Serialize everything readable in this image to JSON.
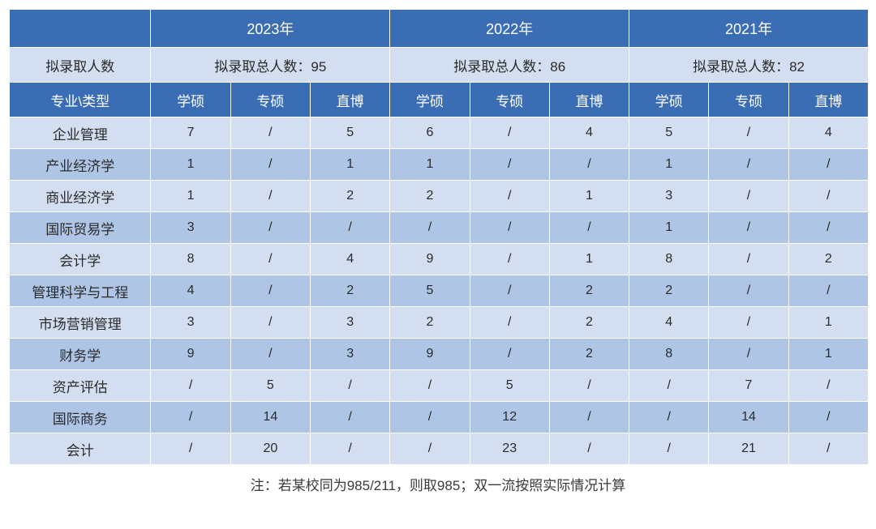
{
  "colors": {
    "header_bg": "#3b6db4",
    "header_fg": "#ffffff",
    "row_odd_bg": "#d3def0",
    "row_even_bg": "#aec5e5",
    "row_fg": "#2a2a2a",
    "border": "#ffffff"
  },
  "years": {
    "y2023": "2023年",
    "y2022": "2022年",
    "y2021": "2021年"
  },
  "totals": {
    "label": "拟录取人数",
    "t2023": "拟录取总人数：95",
    "t2022": "拟录取总人数：86",
    "t2021": "拟录取总人数：82"
  },
  "colheads": {
    "major": "专业\\类型",
    "xs": "学硕",
    "zs": "专硕",
    "zb": "直博"
  },
  "rows": {
    "r0": {
      "major": "企业管理",
      "a": "7",
      "b": "/",
      "c": "5",
      "d": "6",
      "e": "/",
      "f": "4",
      "g": "5",
      "h": "/",
      "i": "4"
    },
    "r1": {
      "major": "产业经济学",
      "a": "1",
      "b": "/",
      "c": "1",
      "d": "1",
      "e": "/",
      "f": "/",
      "g": "1",
      "h": "/",
      "i": "/"
    },
    "r2": {
      "major": "商业经济学",
      "a": "1",
      "b": "/",
      "c": "2",
      "d": "2",
      "e": "/",
      "f": "1",
      "g": "3",
      "h": "/",
      "i": "/"
    },
    "r3": {
      "major": "国际贸易学",
      "a": "3",
      "b": "/",
      "c": "/",
      "d": "/",
      "e": "/",
      "f": "/",
      "g": "1",
      "h": "/",
      "i": "/"
    },
    "r4": {
      "major": "会计学",
      "a": "8",
      "b": "/",
      "c": "4",
      "d": "9",
      "e": "/",
      "f": "1",
      "g": "8",
      "h": "/",
      "i": "2"
    },
    "r5": {
      "major": "管理科学与工程",
      "a": "4",
      "b": "/",
      "c": "2",
      "d": "5",
      "e": "/",
      "f": "2",
      "g": "2",
      "h": "/",
      "i": "/"
    },
    "r6": {
      "major": "市场营销管理",
      "a": "3",
      "b": "/",
      "c": "3",
      "d": "2",
      "e": "/",
      "f": "2",
      "g": "4",
      "h": "/",
      "i": "1"
    },
    "r7": {
      "major": "财务学",
      "a": "9",
      "b": "/",
      "c": "3",
      "d": "9",
      "e": "/",
      "f": "2",
      "g": "8",
      "h": "/",
      "i": "1"
    },
    "r8": {
      "major": "资产评估",
      "a": "/",
      "b": "5",
      "c": "/",
      "d": "/",
      "e": "5",
      "f": "/",
      "g": "/",
      "h": "7",
      "i": "/"
    },
    "r9": {
      "major": "国际商务",
      "a": "/",
      "b": "14",
      "c": "/",
      "d": "/",
      "e": "12",
      "f": "/",
      "g": "/",
      "h": "14",
      "i": "/"
    },
    "r10": {
      "major": "会计",
      "a": "/",
      "b": "20",
      "c": "/",
      "d": "/",
      "e": "23",
      "f": "/",
      "g": "/",
      "h": "21",
      "i": "/"
    }
  },
  "footnote": "注：若某校同为985/211，则取985；双一流按照实际情况计算"
}
